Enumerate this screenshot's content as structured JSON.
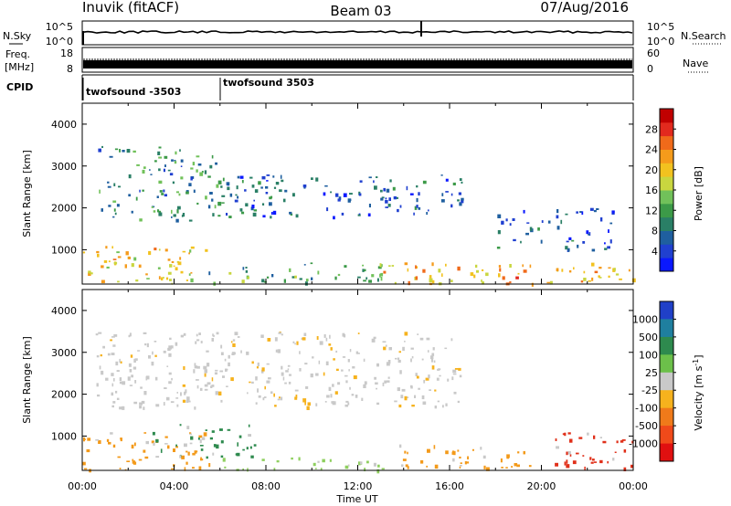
{
  "header": {
    "station": "Inuvik (fitACF)",
    "beam": "Beam 03",
    "date": "07/Aug/2016"
  },
  "noise_panel": {
    "left_label": "N.Sky",
    "left_ticks": [
      "10^5",
      "10^0"
    ],
    "right_label": "N.Search",
    "right_ticks": [
      "10^5",
      "10^0"
    ]
  },
  "freq_panel": {
    "left_label_line1": "Freq.",
    "left_label_line2": "[MHz]",
    "left_ticks": [
      "18",
      "8"
    ],
    "right_label": "Nave",
    "right_ticks": [
      "60",
      "0"
    ]
  },
  "cpid_panel": {
    "label": "CPID",
    "programs": [
      {
        "name": "twofsound -3503",
        "start_hour": 0
      },
      {
        "name": "twofsound 3503",
        "start_hour": 6
      }
    ]
  },
  "chart_data": [
    {
      "type": "heatmap",
      "panel": "power",
      "ylabel": "Slant Range [km]",
      "ylim": [
        180,
        4500
      ],
      "yticks": [
        1000,
        2000,
        3000,
        4000
      ],
      "xlim": [
        0,
        24
      ],
      "colorbar": {
        "label": "Power [dB]",
        "range": [
          0,
          32
        ],
        "ticks": [
          4,
          8,
          12,
          16,
          20,
          24,
          28
        ],
        "colors": [
          "#0a18ff",
          "#2040d0",
          "#1f5f9f",
          "#2a7f66",
          "#3c9a48",
          "#71c15a",
          "#c9d63f",
          "#f2c21f",
          "#f59b1b",
          "#f06a1a",
          "#e22a1e",
          "#c00000"
        ]
      },
      "scatter_regions": [
        {
          "x0": 0.5,
          "x1": 6.0,
          "y0": 1700,
          "y1": 3500,
          "value": 10
        },
        {
          "x0": 6.0,
          "x1": 16.5,
          "y0": 1800,
          "y1": 2800,
          "value": 6
        },
        {
          "x0": 0.0,
          "x1": 5.5,
          "y0": 200,
          "y1": 1100,
          "value": 20
        },
        {
          "x0": 5.5,
          "x1": 13.0,
          "y0": 200,
          "y1": 700,
          "value": 12
        },
        {
          "x0": 13.0,
          "x1": 24.0,
          "y0": 200,
          "y1": 700,
          "value": 22
        },
        {
          "x0": 18.0,
          "x1": 23.5,
          "y0": 1000,
          "y1": 2000,
          "value": 5
        }
      ]
    },
    {
      "type": "heatmap",
      "panel": "velocity",
      "ylabel": "Slant Range [km]",
      "ylim": [
        180,
        4500
      ],
      "yticks": [
        1000,
        2000,
        3000,
        4000
      ],
      "xlim": [
        0,
        24
      ],
      "xticks": [
        "00:00",
        "04:00",
        "08:00",
        "12:00",
        "16:00",
        "20:00",
        "00:00"
      ],
      "xlabel": "Time UT",
      "colorbar": {
        "label": "Velocity [m s^-1]",
        "ticks": [
          "1000",
          "500",
          "100",
          "25",
          "-25",
          "-100",
          "-500",
          "-1000"
        ],
        "colors": [
          "#2040c8",
          "#1f7f9f",
          "#2e8a4e",
          "#6cc04a",
          "#c9c9c9",
          "#f6b21d",
          "#f07a1a",
          "#f04a1a",
          "#e01010"
        ]
      },
      "scatter_regions": [
        {
          "x0": 0.5,
          "x1": 16.5,
          "y0": 1700,
          "y1": 3500,
          "value": "gray"
        },
        {
          "x0": 0.0,
          "x1": 5.5,
          "y0": 200,
          "y1": 1100,
          "value": "orange"
        },
        {
          "x0": 3.0,
          "x1": 7.5,
          "y0": 500,
          "y1": 1300,
          "value": "green"
        },
        {
          "x0": 6.0,
          "x1": 13.5,
          "y0": 200,
          "y1": 500,
          "value": "lightgreen"
        },
        {
          "x0": 13.5,
          "x1": 19.5,
          "y0": 250,
          "y1": 800,
          "value": "orange"
        },
        {
          "x0": 20.5,
          "x1": 24.0,
          "y0": 250,
          "y1": 1100,
          "value": "red"
        }
      ]
    }
  ]
}
